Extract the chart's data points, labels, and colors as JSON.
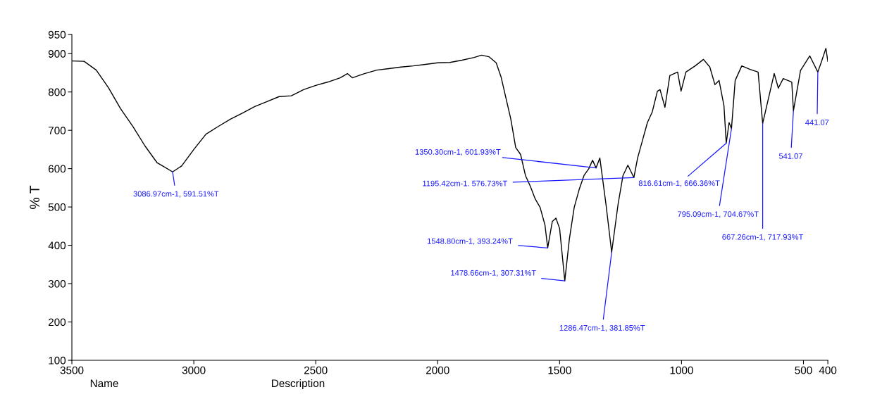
{
  "chart_data": {
    "type": "line",
    "ylabel": "% T",
    "x": [
      3500,
      3450,
      3400,
      3350,
      3300,
      3250,
      3200,
      3150,
      3120,
      3086.97,
      3050,
      3000,
      2950,
      2900,
      2850,
      2800,
      2750,
      2700,
      2650,
      2600,
      2550,
      2500,
      2450,
      2400,
      2370,
      2350,
      2300,
      2250,
      2200,
      2150,
      2100,
      2050,
      2000,
      1950,
      1900,
      1850,
      1820,
      1790,
      1760,
      1740,
      1720,
      1700,
      1680,
      1660,
      1640,
      1620,
      1600,
      1580,
      1560,
      1548.8,
      1530,
      1515,
      1500,
      1478.66,
      1460,
      1440,
      1420,
      1400,
      1380,
      1365,
      1350.3,
      1335,
      1310,
      1286.47,
      1260,
      1240,
      1220,
      1195.42,
      1180,
      1160,
      1140,
      1120,
      1099,
      1088,
      1068,
      1048,
      1016,
      1002,
      982,
      944,
      910,
      884,
      863,
      846,
      826,
      816.61,
      805,
      795.09,
      780,
      753,
      719,
      686,
      667.26,
      620,
      603,
      583,
      548,
      541.07,
      512,
      474,
      441.07,
      425,
      408,
      400
    ],
    "series": [
      {
        "color": "#000000",
        "values": [
          881,
          880,
          857,
          811,
          756,
          710,
          659,
          615,
          604,
          591.51,
          607,
          650,
          690,
          710,
          729,
          745,
          762,
          775,
          788,
          790,
          806,
          817,
          826,
          837,
          848,
          837,
          848,
          857,
          861,
          865,
          868,
          872,
          876,
          877,
          883,
          890,
          896,
          892,
          876,
          839,
          784,
          729,
          655,
          637,
          582,
          554,
          521,
          499,
          453,
          393.24,
          462,
          471,
          444,
          307.31,
          416,
          499,
          545,
          582,
          600,
          622,
          601.93,
          628,
          508,
          381.85,
          508,
          582,
          609,
          576.73,
          628,
          674,
          720,
          748,
          802,
          806,
          760,
          843,
          852,
          802,
          852,
          868,
          885,
          865,
          819,
          830,
          764,
          666.36,
          720,
          704.67,
          830,
          868,
          859,
          852,
          717.93,
          848,
          810,
          835,
          826,
          751,
          856,
          894,
          852,
          881,
          914,
          880
        ]
      }
    ],
    "xlim": [
      3500,
      400
    ],
    "xticks": [
      3500,
      3000,
      2500,
      2000,
      1500,
      1000,
      500,
      400
    ],
    "ylim": [
      100,
      950
    ],
    "yticks": [
      100,
      200,
      300,
      400,
      500,
      600,
      700,
      800,
      900,
      950
    ],
    "annotations": [
      {
        "text": "3086.97cm-1, 591.51%T",
        "x": 3086.97,
        "y": 591.51
      },
      {
        "text": "1350.30cm-1, 601.93%T",
        "x": 1350.3,
        "y": 601.93
      },
      {
        "text": "1195.42cm-1. 576.73%T",
        "x": 1195.42,
        "y": 576.73
      },
      {
        "text": "1548.80cm-1, 393.24%T",
        "x": 1548.8,
        "y": 393.24
      },
      {
        "text": "1478.66cm-1, 307.31%T",
        "x": 1478.66,
        "y": 307.31
      },
      {
        "text": "1286.47cm-1, 381.85%T",
        "x": 1286.47,
        "y": 381.85
      },
      {
        "text": "816.61cm-1, 666.36%T",
        "x": 816.61,
        "y": 666.36
      },
      {
        "text": "795.09cm-1, 704.67%T",
        "x": 795.09,
        "y": 704.67
      },
      {
        "text": "667.26cm-1, 717.93%T",
        "x": 667.26,
        "y": 717.93
      },
      {
        "text": "541.07",
        "x": 541.07,
        "y": 751
      },
      {
        "text": "441.07",
        "x": 441.07,
        "y": 852
      },
      "Name",
      "Description"
    ]
  }
}
